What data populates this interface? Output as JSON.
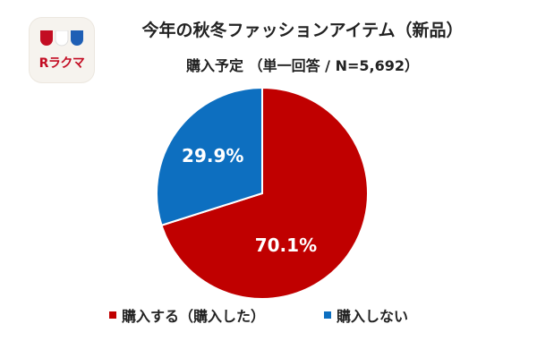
{
  "logo": {
    "text": "Rラクマ",
    "colors": [
      "#c30d23",
      "#ffffff",
      "#1f5fb5"
    ]
  },
  "chart_data": {
    "type": "pie",
    "title": "今年の秋冬ファッションアイテム（新品）",
    "subtitle": "購入予定 （単一回答 / N=5,692）",
    "series": [
      {
        "name": "購入する（購入した）",
        "value": 70.1,
        "label": "70.1%",
        "color": "#c00000"
      },
      {
        "name": "購入しない",
        "value": 29.9,
        "label": "29.9%",
        "color": "#0d6fc0"
      }
    ],
    "start_angle": "12 o'clock",
    "direction": "clockwise",
    "legend_position": "bottom"
  }
}
